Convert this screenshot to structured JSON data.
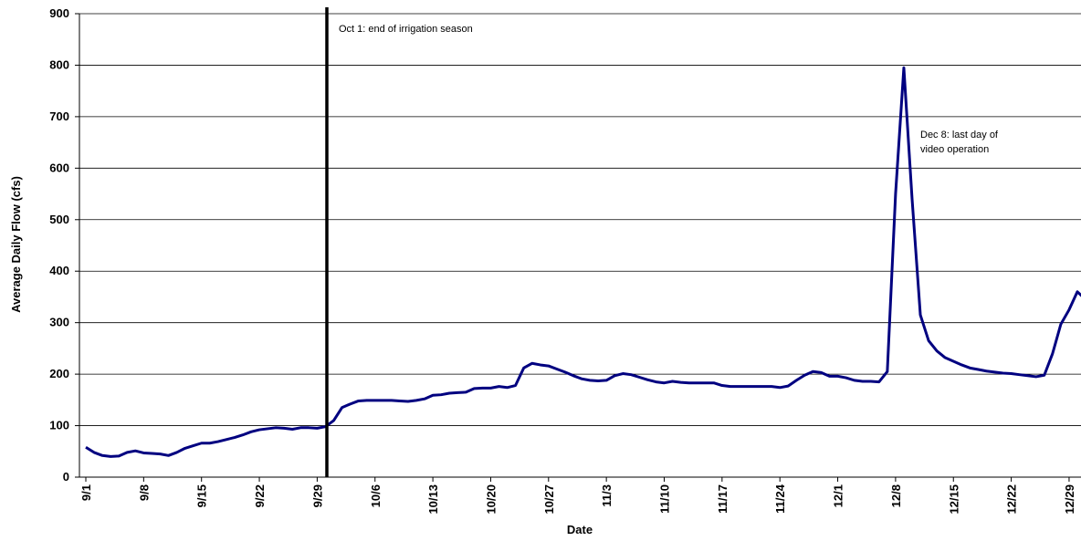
{
  "chart_data": {
    "type": "line",
    "y_label": "Average Daily Flow (cfs)",
    "x_label": "Date",
    "annotations": [
      [
        "Oct 1: end of irrigation season"
      ],
      [
        "Dec 8: last day of",
        "video operation"
      ]
    ],
    "color": "#000080",
    "grid": true,
    "ylim": [
      0,
      900
    ],
    "yticks": [
      0,
      100,
      200,
      300,
      400,
      500,
      600,
      700,
      800,
      900
    ],
    "categories": [
      "9/1",
      null,
      null,
      null,
      null,
      null,
      null,
      "9/8",
      null,
      null,
      null,
      null,
      null,
      null,
      "9/15",
      null,
      null,
      null,
      null,
      null,
      null,
      "9/22",
      null,
      null,
      null,
      null,
      null,
      null,
      "9/29",
      null,
      null,
      null,
      null,
      null,
      null,
      "10/6",
      null,
      null,
      null,
      null,
      null,
      null,
      "10/13",
      null,
      null,
      null,
      null,
      null,
      null,
      "10/20",
      null,
      null,
      null,
      null,
      null,
      null,
      "10/27",
      null,
      null,
      null,
      null,
      null,
      null,
      "11/3",
      null,
      null,
      null,
      null,
      null,
      null,
      "11/10",
      null,
      null,
      null,
      null,
      null,
      null,
      "11/17",
      null,
      null,
      null,
      null,
      null,
      null,
      "11/24",
      null,
      null,
      null,
      null,
      null,
      null,
      "12/1",
      null,
      null,
      null,
      null,
      null,
      null,
      "12/8",
      null,
      null,
      null,
      null,
      null,
      null,
      "12/15",
      null,
      null,
      null,
      null,
      null,
      null,
      "12/22",
      null,
      null,
      null,
      null,
      null,
      null,
      "12/29",
      null,
      null
    ],
    "values": [
      58,
      48,
      42,
      40,
      41,
      48,
      51,
      47,
      46,
      45,
      42,
      48,
      56,
      61,
      66,
      66,
      69,
      73,
      77,
      82,
      88,
      92,
      94,
      96,
      95,
      93,
      96,
      96,
      95,
      98,
      110,
      135,
      142,
      148,
      149,
      149,
      149,
      149,
      148,
      147,
      149,
      152,
      159,
      160,
      163,
      164,
      165,
      172,
      173,
      173,
      176,
      174,
      178,
      212,
      221,
      218,
      216,
      210,
      204,
      197,
      191,
      188,
      187,
      188,
      197,
      201,
      199,
      194,
      189,
      185,
      183,
      186,
      184,
      183,
      183,
      183,
      183,
      178,
      176,
      176,
      176,
      176,
      176,
      176,
      174,
      177,
      188,
      198,
      205,
      203,
      196,
      196,
      193,
      188,
      186,
      186,
      185,
      205,
      550,
      795,
      540,
      315,
      265,
      245,
      232,
      225,
      218,
      212,
      209,
      206,
      204,
      202,
      201,
      199,
      197,
      195,
      198,
      240,
      297,
      325,
      360,
      345
    ]
  }
}
